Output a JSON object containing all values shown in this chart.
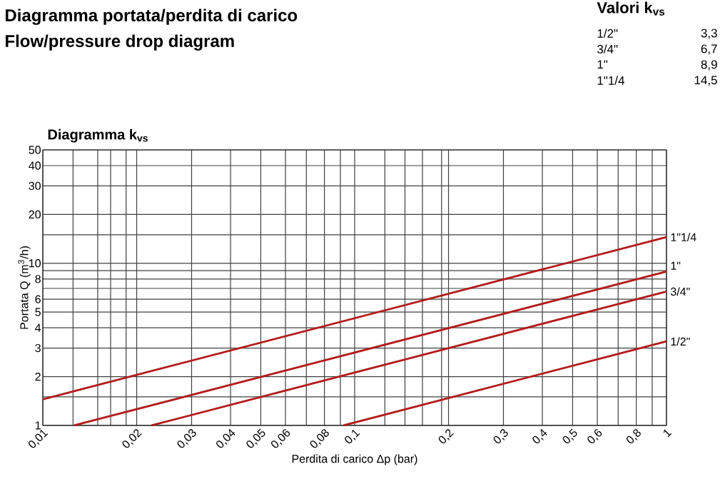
{
  "chart_data": {
    "type": "line",
    "title": "Diagramma portata/perdita di carico",
    "subtitle": "Flow/pressure drop diagram",
    "xlabel": "Perdita di carico Δp (bar)",
    "ylabel": "Portata Q (m$^{3}$/h)",
    "annotations": [
      "Diagramma k$_{vs}$",
      "Valori k$_{vs}$",
      "1/2\"",
      "3,3",
      "3/4\"",
      "6,7",
      "1\"",
      "8,9",
      "1\"1/4",
      "14,5"
    ],
    "log": "xy",
    "grid": true,
    "marker": "none",
    "line_style": "solid",
    "xlim": [
      0.01,
      1
    ],
    "ylim": [
      1,
      50
    ],
    "xticks": [
      {
        "value": 0.01,
        "label": "0,01"
      },
      {
        "value": 0.0125,
        "label": null
      },
      {
        "value": 0.015,
        "label": null
      },
      {
        "value": 0.0165,
        "label": null
      },
      {
        "value": 0.0185,
        "label": null
      },
      {
        "value": 0.02,
        "label": "0,02"
      },
      {
        "value": 0.03,
        "label": "0,03"
      },
      {
        "value": 0.04,
        "label": "0,04"
      },
      {
        "value": 0.05,
        "label": "0,05"
      },
      {
        "value": 0.06,
        "label": "0,06"
      },
      {
        "value": 0.07,
        "label": null
      },
      {
        "value": 0.08,
        "label": "0,08"
      },
      {
        "value": 0.09,
        "label": null
      },
      {
        "value": 0.1,
        "label": "0,1"
      },
      {
        "value": 0.125,
        "label": null
      },
      {
        "value": 0.145,
        "label": null
      },
      {
        "value": 0.165,
        "label": null
      },
      {
        "value": 0.19,
        "label": null
      },
      {
        "value": 0.2,
        "label": "0,2"
      },
      {
        "value": 0.3,
        "label": "0,3"
      },
      {
        "value": 0.4,
        "label": "0,4"
      },
      {
        "value": 0.5,
        "label": "0,5"
      },
      {
        "value": 0.6,
        "label": "0,6"
      },
      {
        "value": 0.7,
        "label": null
      },
      {
        "value": 0.8,
        "label": "0,8"
      },
      {
        "value": 0.9,
        "label": null
      },
      1
    ],
    "yticks": [
      1,
      {
        "value": 1.5,
        "label": null
      },
      2,
      3,
      4,
      5,
      6,
      {
        "value": 7,
        "label": null
      },
      8,
      {
        "value": 9,
        "label": null
      },
      10,
      {
        "value": 15,
        "label": null
      },
      20,
      30,
      40,
      50
    ],
    "series": [
      {
        "name": "1/2\"",
        "color": "#b31b1b",
        "x": [
          0.092,
          1
        ],
        "values": [
          1,
          3.3
        ]
      },
      {
        "name": "3/4\"",
        "color": "#b31b1b",
        "x": [
          0.0223,
          1
        ],
        "values": [
          1,
          6.7
        ]
      },
      {
        "name": "1\"",
        "color": "#b31b1b",
        "x": [
          0.0126,
          1
        ],
        "values": [
          1,
          8.9
        ]
      },
      {
        "name": "1\"1/4",
        "color": "#b31b1b",
        "x": [
          0.01,
          1
        ],
        "values": [
          1.45,
          14.5
        ]
      }
    ]
  }
}
